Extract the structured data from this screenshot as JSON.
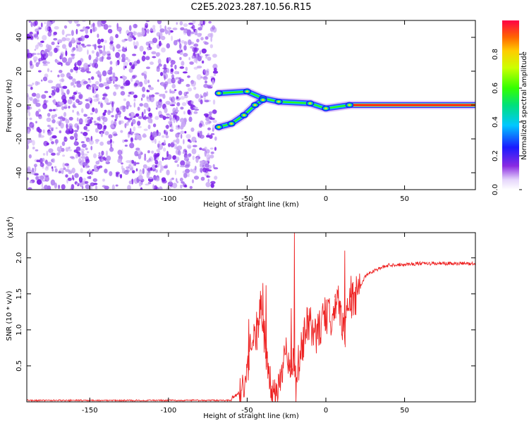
{
  "title": "C2E5.2023.287.10.56.R15",
  "colors": {
    "speckle": "#7a1ee8",
    "speckle_light": "#c9a8f5",
    "snr_line": "#ee2222",
    "axis": "#000000"
  },
  "chart_data": [
    {
      "type": "heatmap",
      "xlabel": "Height of straight line (km)",
      "ylabel": "Frequency (Hz)",
      "xlim": [
        -190,
        95
      ],
      "ylim": [
        -50,
        50
      ],
      "xticks": [
        "-150",
        "-100",
        "-50",
        "0",
        "50"
      ],
      "xtick_values": [
        -150,
        -100,
        -50,
        0,
        50
      ],
      "yticks": [
        "-40",
        "-20",
        "0",
        "20",
        "40"
      ],
      "ytick_values": [
        -40,
        -20,
        0,
        20,
        40
      ],
      "noise_region_x": [
        -190,
        -68
      ],
      "signal_path": {
        "description_points": [
          {
            "x": -68,
            "y": 7
          },
          {
            "x": -50,
            "y": 8
          },
          {
            "x": -40,
            "y": 4
          },
          {
            "x": -30,
            "y": 2
          },
          {
            "x": -10,
            "y": 1
          },
          {
            "x": 0,
            "y": -2
          },
          {
            "x": 15,
            "y": 0
          },
          {
            "x": 95,
            "y": 0
          }
        ],
        "lower_branch": [
          {
            "x": -68,
            "y": -13
          },
          {
            "x": -60,
            "y": -11
          },
          {
            "x": -52,
            "y": -6
          },
          {
            "x": -45,
            "y": 0
          },
          {
            "x": -40,
            "y": 3
          }
        ]
      },
      "colorbar": {
        "label": "Normalized spectral amplitude",
        "range": [
          0,
          1
        ],
        "ticks": [
          "0.0",
          "0.2",
          "0.4",
          "0.6",
          "0.8"
        ],
        "tick_values": [
          0.0,
          0.2,
          0.4,
          0.6,
          0.8
        ]
      }
    },
    {
      "type": "line",
      "xlabel": "Height of straight line (km)",
      "ylabel": "SNR (10 * v/v)",
      "y_multiplier": "(x10",
      "y_multiplier_exp": "4",
      "y_multiplier_close": ")",
      "xlim": [
        -190,
        95
      ],
      "ylim": [
        0,
        2.35
      ],
      "xticks": [
        "-150",
        "-100",
        "-50",
        "0",
        "50"
      ],
      "xtick_values": [
        -150,
        -100,
        -50,
        0,
        50
      ],
      "yticks": [
        "0.5",
        "1.0",
        "1.5",
        "2.0"
      ],
      "ytick_values": [
        0.5,
        1.0,
        1.5,
        2.0
      ],
      "series": [
        {
          "anchors_x": [
            -190,
            -70,
            -60,
            -55,
            -52,
            -49,
            -46,
            -44,
            -42,
            -40,
            -38,
            -36,
            -34,
            -32,
            -30,
            -28,
            -25,
            -23,
            -21,
            -19,
            -17,
            -15,
            -12,
            -9,
            -6,
            -3,
            0,
            3,
            6,
            9,
            12,
            14,
            16,
            18,
            20,
            25,
            30,
            40,
            60,
            80,
            95
          ],
          "anchors_y": [
            0.01,
            0.01,
            0.05,
            0.12,
            0.2,
            0.55,
            1.05,
            0.9,
            1.3,
            1.2,
            0.6,
            0.25,
            0.15,
            0.12,
            0.2,
            0.45,
            0.9,
            0.3,
            0.65,
            0.2,
            0.6,
            0.75,
            1.05,
            1.05,
            0.9,
            1.1,
            1.2,
            1.15,
            1.45,
            1.3,
            0.95,
            1.3,
            1.45,
            1.4,
            1.5,
            1.75,
            1.82,
            1.9,
            1.92,
            1.92,
            1.92
          ],
          "spikes": [
            {
              "x": -49,
              "y": 1.15
            },
            {
              "x": -44,
              "y": 1.25
            },
            {
              "x": -40,
              "y": 1.65
            },
            {
              "x": -38,
              "y": 1.62
            },
            {
              "x": -20,
              "y": 2.35
            },
            {
              "x": -22,
              "y": 1.3
            },
            {
              "x": 6,
              "y": 1.5
            },
            {
              "x": 12,
              "y": 2.1
            },
            {
              "x": 16,
              "y": 1.75
            }
          ]
        }
      ]
    }
  ]
}
